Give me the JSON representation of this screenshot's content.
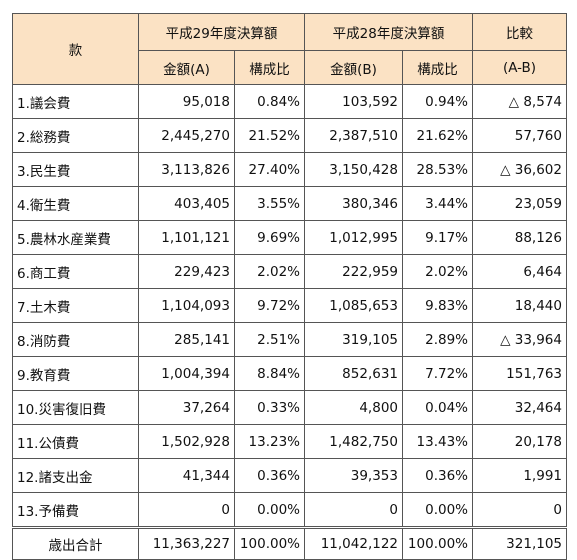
{
  "header": {
    "category": "款",
    "fy29": "平成29年度決算額",
    "fy28": "平成28年度決算額",
    "compare": "比較",
    "amount_a": "金額(A)",
    "ratio": "構成比",
    "amount_b": "金額(B)",
    "diff": "(A-B)"
  },
  "rows": [
    {
      "label": "1.議会費",
      "a": "95,018",
      "ra": "0.84%",
      "b": "103,592",
      "rb": "0.94%",
      "diff": "△ 8,574"
    },
    {
      "label": "2.総務費",
      "a": "2,445,270",
      "ra": "21.52%",
      "b": "2,387,510",
      "rb": "21.62%",
      "diff": "57,760"
    },
    {
      "label": "3.民生費",
      "a": "3,113,826",
      "ra": "27.40%",
      "b": "3,150,428",
      "rb": "28.53%",
      "diff": "△ 36,602"
    },
    {
      "label": "4.衛生費",
      "a": "403,405",
      "ra": "3.55%",
      "b": "380,346",
      "rb": "3.44%",
      "diff": "23,059"
    },
    {
      "label": "5.農林水産業費",
      "a": "1,101,121",
      "ra": "9.69%",
      "b": "1,012,995",
      "rb": "9.17%",
      "diff": "88,126"
    },
    {
      "label": "6.商工費",
      "a": "229,423",
      "ra": "2.02%",
      "b": "222,959",
      "rb": "2.02%",
      "diff": "6,464"
    },
    {
      "label": "7.土木費",
      "a": "1,104,093",
      "ra": "9.72%",
      "b": "1,085,653",
      "rb": "9.83%",
      "diff": "18,440"
    },
    {
      "label": "8.消防費",
      "a": "285,141",
      "ra": "2.51%",
      "b": "319,105",
      "rb": "2.89%",
      "diff": "△ 33,964"
    },
    {
      "label": "9.教育費",
      "a": "1,004,394",
      "ra": "8.84%",
      "b": "852,631",
      "rb": "7.72%",
      "diff": "151,763"
    },
    {
      "label": "10.災害復旧費",
      "a": "37,264",
      "ra": "0.33%",
      "b": "4,800",
      "rb": "0.04%",
      "diff": "32,464"
    },
    {
      "label": "11.公債費",
      "a": "1,502,928",
      "ra": "13.23%",
      "b": "1,482,750",
      "rb": "13.43%",
      "diff": "20,178"
    },
    {
      "label": "12.諸支出金",
      "a": "41,344",
      "ra": "0.36%",
      "b": "39,353",
      "rb": "0.36%",
      "diff": "1,991"
    },
    {
      "label": "13.予備費",
      "a": "0",
      "ra": "0.00%",
      "b": "0",
      "rb": "0.00%",
      "diff": "0"
    }
  ],
  "total": {
    "label": "歳出合計",
    "a": "11,363,227",
    "ra": "100.00%",
    "b": "11,042,122",
    "rb": "100.00%",
    "diff": "321,105"
  },
  "colors": {
    "header_bg": "#fbe2c4",
    "border": "#555555"
  }
}
